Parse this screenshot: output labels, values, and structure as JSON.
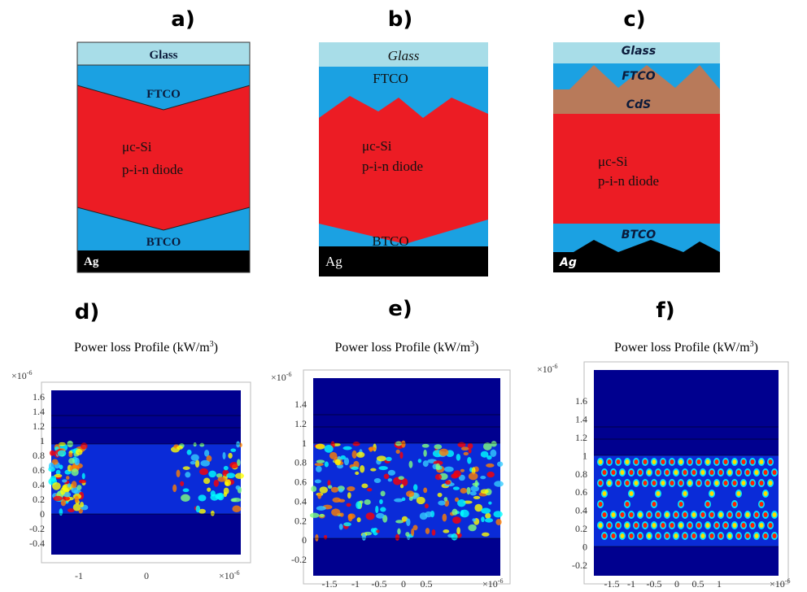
{
  "panels": [
    {
      "label": "a)",
      "layers": {
        "glass": "Glass",
        "ftco": "FTCO",
        "absorber": "μc-Si",
        "diode": "p-i-n diode",
        "btco": "BTCO",
        "ag": "Ag"
      }
    },
    {
      "label": "b)",
      "layers": {
        "glass": "Glass",
        "ftco": "FTCO",
        "absorber": "μc-Si",
        "diode": "p-i-n diode",
        "btco": "BTCO",
        "ag": "Ag"
      }
    },
    {
      "label": "c)",
      "layers": {
        "glass": "Glass",
        "ftco": "FTCO",
        "cds": "CdS",
        "absorber": "μc-Si",
        "diode": "p-i-n diode",
        "btco": "BTCO",
        "ag": "Ag"
      }
    }
  ],
  "plots": [
    {
      "label": "d)",
      "title": "Power loss Profile (kW/m",
      "title_sup": "3",
      "title_end": ")",
      "exponent_base": "×10",
      "exponent": "-6",
      "yticks": [
        "1.6",
        "1.4",
        "1.2",
        "1",
        "0.8",
        "0.6",
        "0.4",
        "0.2",
        "0",
        "-0.2",
        "-0.4"
      ],
      "xticks": [
        "-1",
        "0"
      ]
    },
    {
      "label": "e)",
      "title": "Power loss Profile (kW/m",
      "title_sup": "3",
      "title_end": ")",
      "exponent_base": "×10",
      "exponent": "-6",
      "yticks": [
        "1.4",
        "1.2",
        "1",
        "0.8",
        "0.6",
        "0.4",
        "0.2",
        "0",
        "-0.2"
      ],
      "xticks": [
        "-1.5",
        "-1",
        "-0.5",
        "0",
        "0.5"
      ]
    },
    {
      "label": "f)",
      "title": "Power loss Profile (kW/m",
      "title_sup": "3",
      "title_end": ")",
      "exponent_base": "×10",
      "exponent": "-6",
      "yticks": [
        "1.6",
        "1.4",
        "1.2",
        "1",
        "0.8",
        "0.6",
        "0.4",
        "0.2",
        "0",
        "-0.2"
      ],
      "xticks": [
        "-1.5",
        "-1",
        "-0.5",
        "0",
        "0.5",
        "1"
      ]
    }
  ]
}
